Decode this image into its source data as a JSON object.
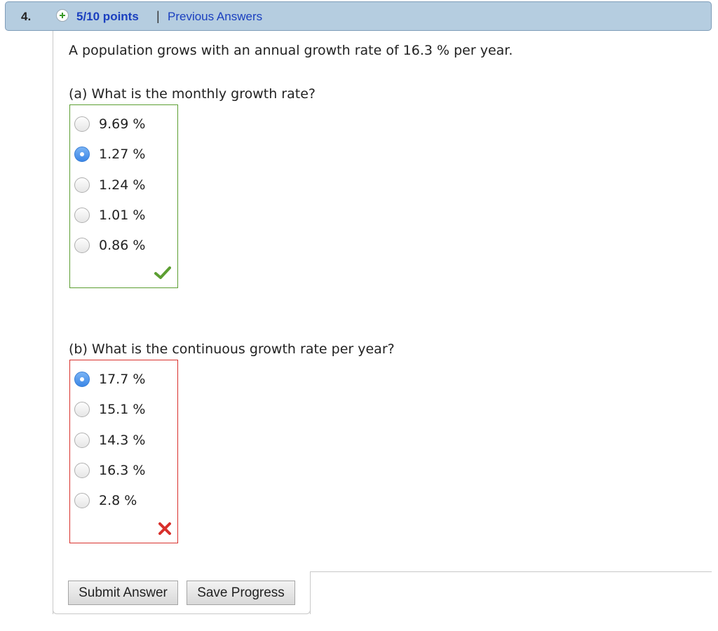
{
  "header": {
    "question_number": "4.",
    "points": "5/10 points",
    "separator": "|",
    "previous_answers_label": "Previous Answers"
  },
  "problem": {
    "text": "A population grows with an annual growth rate of 16.3 % per year."
  },
  "part_a": {
    "question": "(a) What is the monthly growth rate?",
    "options": [
      {
        "label": "9.69 %",
        "selected": false
      },
      {
        "label": "1.27 %",
        "selected": true
      },
      {
        "label": "1.24 %",
        "selected": false
      },
      {
        "label": "1.01 %",
        "selected": false
      },
      {
        "label": "0.86 %",
        "selected": false
      }
    ],
    "result_icon": "check-icon",
    "result_color": "#5c9e32"
  },
  "part_b": {
    "question": "(b) What is the continuous growth rate per year?",
    "options": [
      {
        "label": "17.7 %",
        "selected": true
      },
      {
        "label": "15.1 %",
        "selected": false
      },
      {
        "label": "14.3 %",
        "selected": false
      },
      {
        "label": "16.3 %",
        "selected": false
      },
      {
        "label": "2.8 %",
        "selected": false
      }
    ],
    "result_icon": "x-icon",
    "result_color": "#d8302c"
  },
  "buttons": {
    "submit_label": "Submit Answer",
    "save_label": "Save Progress"
  }
}
